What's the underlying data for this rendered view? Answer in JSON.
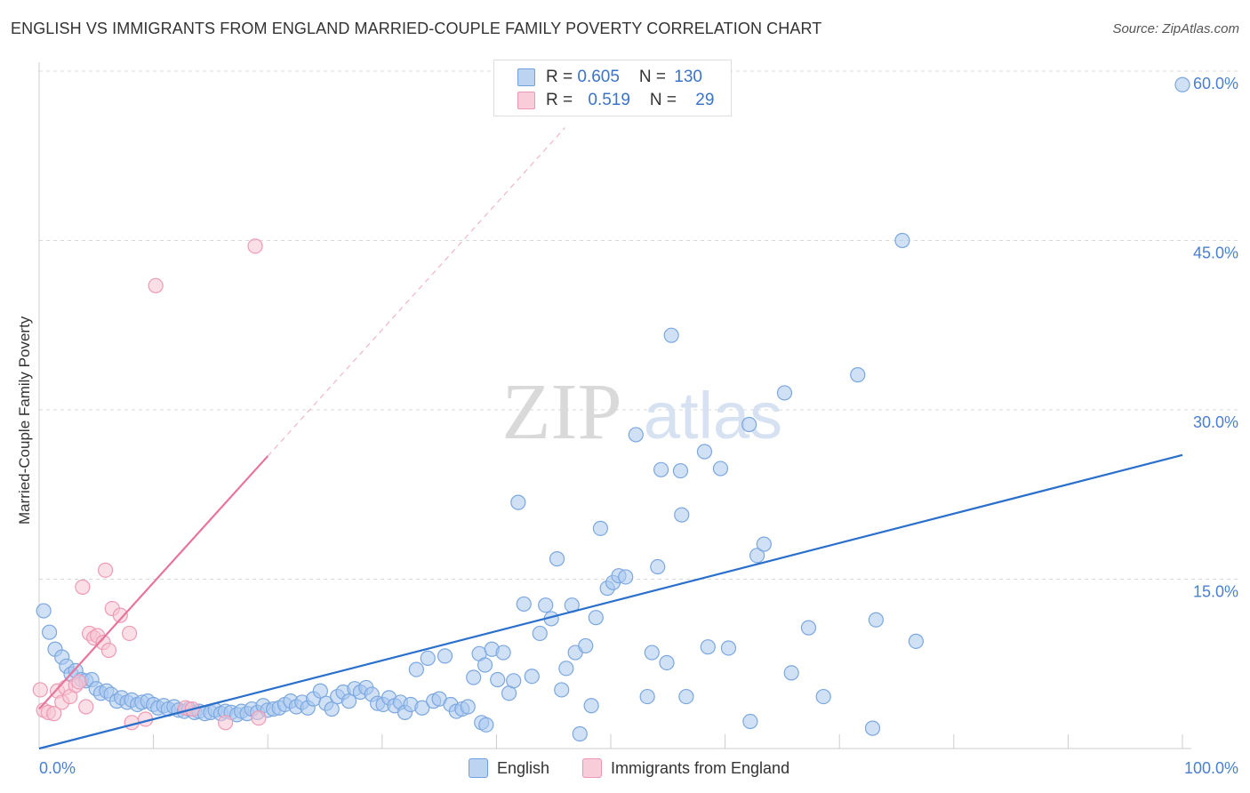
{
  "header": {
    "title": "ENGLISH VS IMMIGRANTS FROM ENGLAND MARRIED-COUPLE FAMILY POVERTY CORRELATION CHART",
    "source": "Source: ZipAtlas.com"
  },
  "watermark": {
    "zip": "ZIP",
    "atlas": "atlas"
  },
  "stats_legend": {
    "r_label": "R = ",
    "n_label": "N = ",
    "english": {
      "r": "0.605",
      "n": "130"
    },
    "immigrants": {
      "r": "0.519",
      "n": "29"
    }
  },
  "colors": {
    "blue": "#7ba7e0",
    "blue_fill": "#a9c8ef",
    "blue_line": "#2a6fcc",
    "pink": "#ef9ab5",
    "pink_fill": "#f6c5d4",
    "pink_line": "#e8739b"
  },
  "chart_data": {
    "type": "scatter",
    "title": "ENGLISH VS IMMIGRANTS FROM ENGLAND MARRIED-COUPLE FAMILY POVERTY CORRELATION CHART",
    "xlabel": "",
    "ylabel": "Married-Couple Family Poverty",
    "xlim": [
      0,
      100
    ],
    "ylim": [
      0,
      60
    ],
    "x_tick_labels": [
      "0.0%",
      "100.0%"
    ],
    "y_ticks": [
      15,
      30,
      45,
      60
    ],
    "y_tick_labels": [
      "15.0%",
      "30.0%",
      "45.0%",
      "60.0%"
    ],
    "legend": [
      "English",
      "Immigrants from England"
    ],
    "series": [
      {
        "name": "English",
        "r": 0.605,
        "n": 130,
        "trend": {
          "x": [
            0,
            100
          ],
          "y": [
            0.0,
            26.0
          ]
        },
        "points": [
          [
            0.4,
            12.2
          ],
          [
            0.9,
            10.3
          ],
          [
            1.4,
            8.8
          ],
          [
            2.0,
            8.1
          ],
          [
            2.4,
            7.3
          ],
          [
            2.8,
            6.6
          ],
          [
            3.2,
            6.9
          ],
          [
            3.7,
            6.1
          ],
          [
            4.1,
            6.0
          ],
          [
            4.6,
            6.1
          ],
          [
            5.0,
            5.3
          ],
          [
            5.4,
            4.9
          ],
          [
            5.9,
            5.1
          ],
          [
            6.3,
            4.8
          ],
          [
            6.8,
            4.2
          ],
          [
            7.2,
            4.5
          ],
          [
            7.7,
            4.1
          ],
          [
            8.1,
            4.3
          ],
          [
            8.6,
            3.9
          ],
          [
            9.0,
            4.1
          ],
          [
            9.5,
            4.2
          ],
          [
            10.0,
            3.9
          ],
          [
            10.4,
            3.6
          ],
          [
            10.9,
            3.8
          ],
          [
            11.3,
            3.5
          ],
          [
            11.8,
            3.7
          ],
          [
            12.2,
            3.4
          ],
          [
            12.7,
            3.3
          ],
          [
            13.1,
            3.5
          ],
          [
            13.6,
            3.2
          ],
          [
            14.0,
            3.3
          ],
          [
            14.5,
            3.1
          ],
          [
            15.0,
            3.2
          ],
          [
            15.4,
            3.4
          ],
          [
            15.9,
            3.1
          ],
          [
            16.3,
            3.3
          ],
          [
            16.8,
            3.2
          ],
          [
            17.3,
            3.0
          ],
          [
            17.7,
            3.3
          ],
          [
            18.2,
            3.1
          ],
          [
            18.6,
            3.5
          ],
          [
            19.1,
            3.2
          ],
          [
            19.6,
            3.8
          ],
          [
            20.0,
            3.4
          ],
          [
            20.5,
            3.5
          ],
          [
            21.0,
            3.6
          ],
          [
            21.5,
            3.9
          ],
          [
            22.0,
            4.2
          ],
          [
            22.5,
            3.7
          ],
          [
            23.0,
            4.1
          ],
          [
            23.5,
            3.6
          ],
          [
            24.0,
            4.4
          ],
          [
            24.6,
            5.1
          ],
          [
            25.1,
            4.0
          ],
          [
            25.6,
            3.5
          ],
          [
            26.1,
            4.6
          ],
          [
            26.6,
            5.0
          ],
          [
            27.1,
            4.2
          ],
          [
            27.6,
            5.3
          ],
          [
            28.1,
            5.0
          ],
          [
            28.6,
            5.4
          ],
          [
            29.1,
            4.8
          ],
          [
            29.6,
            4.0
          ],
          [
            30.1,
            3.9
          ],
          [
            30.6,
            4.5
          ],
          [
            31.1,
            3.8
          ],
          [
            31.6,
            4.1
          ],
          [
            32.0,
            3.2
          ],
          [
            32.5,
            3.9
          ],
          [
            33.0,
            7.0
          ],
          [
            33.5,
            3.6
          ],
          [
            34.0,
            8.0
          ],
          [
            34.5,
            4.2
          ],
          [
            35.0,
            4.4
          ],
          [
            35.5,
            8.2
          ],
          [
            36.0,
            3.9
          ],
          [
            36.5,
            3.3
          ],
          [
            37.0,
            3.5
          ],
          [
            37.5,
            3.7
          ],
          [
            38.0,
            6.3
          ],
          [
            38.5,
            8.4
          ],
          [
            39.0,
            7.4
          ],
          [
            38.7,
            2.3
          ],
          [
            39.1,
            2.1
          ],
          [
            39.6,
            8.8
          ],
          [
            40.1,
            6.1
          ],
          [
            40.6,
            8.5
          ],
          [
            41.1,
            4.9
          ],
          [
            41.5,
            6.0
          ],
          [
            41.9,
            21.8
          ],
          [
            42.4,
            12.8
          ],
          [
            43.1,
            6.4
          ],
          [
            43.8,
            10.2
          ],
          [
            44.3,
            12.7
          ],
          [
            44.8,
            11.5
          ],
          [
            45.3,
            16.8
          ],
          [
            45.7,
            5.2
          ],
          [
            46.1,
            7.1
          ],
          [
            46.6,
            12.7
          ],
          [
            46.9,
            8.5
          ],
          [
            47.3,
            1.3
          ],
          [
            47.8,
            9.1
          ],
          [
            48.3,
            3.8
          ],
          [
            48.7,
            11.6
          ],
          [
            49.1,
            19.5
          ],
          [
            49.7,
            14.2
          ],
          [
            50.2,
            14.7
          ],
          [
            50.7,
            15.3
          ],
          [
            51.3,
            15.2
          ],
          [
            52.2,
            27.8
          ],
          [
            53.2,
            4.6
          ],
          [
            53.6,
            8.5
          ],
          [
            54.1,
            16.1
          ],
          [
            54.4,
            24.7
          ],
          [
            54.9,
            7.6
          ],
          [
            55.3,
            36.6
          ],
          [
            56.1,
            24.6
          ],
          [
            56.2,
            20.7
          ],
          [
            56.6,
            4.6
          ],
          [
            58.2,
            26.3
          ],
          [
            58.5,
            9.0
          ],
          [
            59.6,
            24.8
          ],
          [
            60.3,
            8.9
          ],
          [
            62.1,
            28.7
          ],
          [
            62.2,
            2.4
          ],
          [
            62.8,
            17.1
          ],
          [
            63.4,
            18.1
          ],
          [
            65.2,
            31.5
          ],
          [
            65.8,
            6.7
          ],
          [
            67.3,
            10.7
          ],
          [
            68.6,
            4.6
          ],
          [
            71.6,
            33.1
          ],
          [
            72.9,
            1.8
          ],
          [
            73.2,
            11.4
          ],
          [
            75.5,
            45.0
          ],
          [
            76.7,
            9.5
          ],
          [
            100.0,
            58.8
          ]
        ]
      },
      {
        "name": "Immigrants from England",
        "r": 0.519,
        "n": 29,
        "trend": {
          "x": [
            0,
            20
          ],
          "y": [
            3.5,
            25.9
          ]
        },
        "trend_dashed": {
          "x": [
            20,
            46
          ],
          "y": [
            25.9,
            55.0
          ]
        },
        "points": [
          [
            0.1,
            5.2
          ],
          [
            0.4,
            3.4
          ],
          [
            0.8,
            3.2
          ],
          [
            1.3,
            3.1
          ],
          [
            1.6,
            5.1
          ],
          [
            2.0,
            4.1
          ],
          [
            2.3,
            5.4
          ],
          [
            2.7,
            4.6
          ],
          [
            3.2,
            5.6
          ],
          [
            3.5,
            5.9
          ],
          [
            3.8,
            14.3
          ],
          [
            4.1,
            3.7
          ],
          [
            4.4,
            10.2
          ],
          [
            4.8,
            9.8
          ],
          [
            5.1,
            10.0
          ],
          [
            5.6,
            9.4
          ],
          [
            5.8,
            15.8
          ],
          [
            6.1,
            8.7
          ],
          [
            6.4,
            12.4
          ],
          [
            7.1,
            11.8
          ],
          [
            7.9,
            10.2
          ],
          [
            8.1,
            2.3
          ],
          [
            9.3,
            2.6
          ],
          [
            10.2,
            41.0
          ],
          [
            12.8,
            3.6
          ],
          [
            13.4,
            3.5
          ],
          [
            16.3,
            2.3
          ],
          [
            19.2,
            2.7
          ],
          [
            18.9,
            44.5
          ]
        ]
      }
    ]
  }
}
